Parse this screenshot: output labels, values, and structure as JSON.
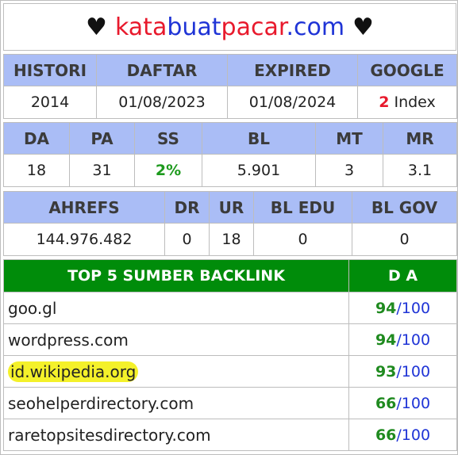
{
  "title": {
    "part1": "kata",
    "part2": "buat",
    "part3": "pacar",
    "part4": ".com",
    "heart": "♥"
  },
  "table1": {
    "headers": [
      "HISTORI",
      "DAFTAR",
      "EXPIRED",
      "GOOGLE"
    ],
    "values": {
      "histori": "2014",
      "daftar": "01/08/2023",
      "expired": "01/08/2024",
      "google_count": "2",
      "google_label": " Index"
    }
  },
  "table2": {
    "headers": [
      "DA",
      "PA",
      "SS",
      "BL",
      "MT",
      "MR"
    ],
    "values": [
      "18",
      "31",
      "2%",
      "5.901",
      "3",
      "3.1"
    ]
  },
  "table3": {
    "headers": [
      "AHREFS",
      "DR",
      "UR",
      "BL EDU",
      "BL GOV"
    ],
    "values": [
      "144.976.482",
      "0",
      "18",
      "0",
      "0"
    ]
  },
  "backlinks": {
    "header_source": "TOP 5 SUMBER BACKLINK",
    "header_da": "D A",
    "rows": [
      {
        "site": "goo.gl",
        "score": "94",
        "max": "/100"
      },
      {
        "site": "wordpress.com",
        "score": "94",
        "max": "/100"
      },
      {
        "site": "id.wikipedia.org",
        "score": "93",
        "max": "/100"
      },
      {
        "site": "seohelperdirectory.com",
        "score": "66",
        "max": "/100"
      },
      {
        "site": "raretopsitesdirectory.com",
        "score": "66",
        "max": "/100"
      }
    ]
  },
  "colors": {
    "header_blue": "#aabdf6",
    "header_green": "#008c0a",
    "brand_red": "#e8192c",
    "brand_blue": "#1f34d6",
    "highlight": "#f4f12a"
  }
}
